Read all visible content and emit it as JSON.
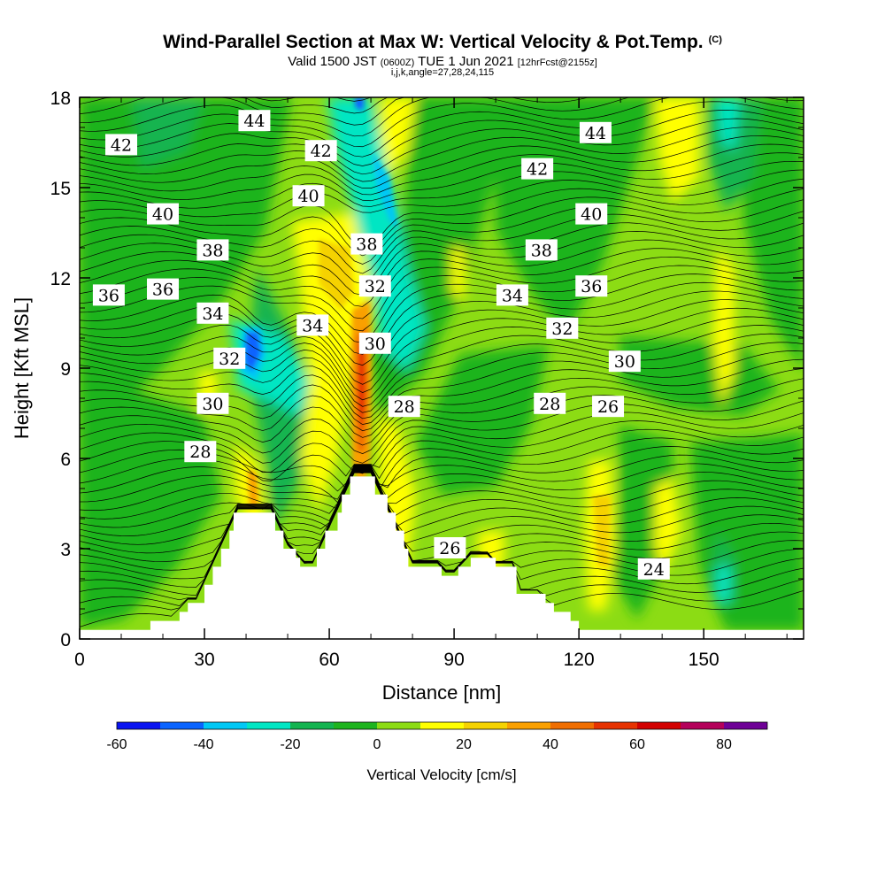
{
  "chart_data": {
    "type": "heatmap",
    "title": "Wind-Parallel Section at Max W: Vertical Velocity & Pot.Temp.",
    "title_mark": "(C)",
    "subtitle_valid": "Valid 1500 JST",
    "subtitle_utc": "(0600Z)",
    "subtitle_date": "TUE 1 Jun 2021",
    "subtitle_fcst": "[12hrFcst@2155z]",
    "subtitle2": "i,j,k,angle=27,28,24,115",
    "xlabel": "Distance [nm]",
    "ylabel": "Height [Kft MSL]",
    "xlim": [
      0,
      174
    ],
    "ylim": [
      0,
      18
    ],
    "xticks": [
      0,
      30,
      60,
      90,
      120,
      150
    ],
    "yticks": [
      0,
      3,
      6,
      9,
      12,
      15,
      18
    ],
    "colorbar": {
      "label": "Vertical Velocity [cm/s]",
      "ticks": [
        -60,
        -40,
        -20,
        0,
        20,
        40,
        60,
        80
      ],
      "bins": [
        -60,
        -50,
        -40,
        -30,
        -20,
        -10,
        0,
        10,
        20,
        30,
        40,
        50,
        60,
        70,
        80,
        90
      ],
      "colors": [
        "#0a14f0",
        "#0a64ff",
        "#00c8f5",
        "#00e6c3",
        "#14b450",
        "#1eb41e",
        "#8cdc14",
        "#ffff00",
        "#f5d200",
        "#faa000",
        "#f06e00",
        "#e63200",
        "#d20000",
        "#b4005a",
        "#6e0096"
      ]
    },
    "terrain_profile": [
      [
        0,
        0.3
      ],
      [
        15,
        0.3
      ],
      [
        17,
        0.6
      ],
      [
        22,
        0.6
      ],
      [
        24,
        0.9
      ],
      [
        26,
        1.2
      ],
      [
        29,
        1.2
      ],
      [
        30,
        1.8
      ],
      [
        32,
        2.4
      ],
      [
        34,
        3.0
      ],
      [
        36,
        3.6
      ],
      [
        37,
        4.2
      ],
      [
        46,
        4.2
      ],
      [
        47,
        3.6
      ],
      [
        49,
        3.0
      ],
      [
        52,
        2.7
      ],
      [
        53,
        2.4
      ],
      [
        56,
        2.4
      ],
      [
        57,
        3.0
      ],
      [
        59,
        3.6
      ],
      [
        62,
        4.2
      ],
      [
        63,
        4.8
      ],
      [
        65,
        5.4
      ],
      [
        70,
        5.4
      ],
      [
        71,
        4.8
      ],
      [
        74,
        4.2
      ],
      [
        76,
        3.6
      ],
      [
        78,
        3.0
      ],
      [
        79,
        2.4
      ],
      [
        86,
        2.4
      ],
      [
        87,
        2.1
      ],
      [
        90,
        2.1
      ],
      [
        91,
        2.4
      ],
      [
        94,
        2.7
      ],
      [
        98,
        2.7
      ],
      [
        100,
        2.4
      ],
      [
        104,
        2.4
      ],
      [
        105,
        1.5
      ],
      [
        112,
        1.2
      ],
      [
        114,
        0.9
      ],
      [
        118,
        0.6
      ],
      [
        120,
        0.3
      ],
      [
        174,
        0.3
      ]
    ],
    "isentrope_labels": [
      {
        "text": "44",
        "x": 42,
        "y": 17.2
      },
      {
        "text": "42",
        "x": 10,
        "y": 16.4
      },
      {
        "text": "42",
        "x": 58,
        "y": 16.2
      },
      {
        "text": "44",
        "x": 124,
        "y": 16.8
      },
      {
        "text": "42",
        "x": 110,
        "y": 15.6
      },
      {
        "text": "40",
        "x": 20,
        "y": 14.1
      },
      {
        "text": "40",
        "x": 55,
        "y": 14.7
      },
      {
        "text": "40",
        "x": 123,
        "y": 14.1
      },
      {
        "text": "38",
        "x": 69,
        "y": 13.1
      },
      {
        "text": "38",
        "x": 32,
        "y": 12.9
      },
      {
        "text": "38",
        "x": 111,
        "y": 12.9
      },
      {
        "text": "36",
        "x": 7,
        "y": 11.4
      },
      {
        "text": "36",
        "x": 20,
        "y": 11.6
      },
      {
        "text": "36",
        "x": 123,
        "y": 11.7
      },
      {
        "text": "32",
        "x": 71,
        "y": 11.7
      },
      {
        "text": "34",
        "x": 104,
        "y": 11.4
      },
      {
        "text": "34",
        "x": 32,
        "y": 10.8
      },
      {
        "text": "34",
        "x": 56,
        "y": 10.4
      },
      {
        "text": "32",
        "x": 116,
        "y": 10.3
      },
      {
        "text": "30",
        "x": 71,
        "y": 9.8
      },
      {
        "text": "32",
        "x": 36,
        "y": 9.3
      },
      {
        "text": "30",
        "x": 131,
        "y": 9.2
      },
      {
        "text": "30",
        "x": 32,
        "y": 7.8
      },
      {
        "text": "28",
        "x": 78,
        "y": 7.7
      },
      {
        "text": "28",
        "x": 113,
        "y": 7.8
      },
      {
        "text": "26",
        "x": 127,
        "y": 7.7
      },
      {
        "text": "28",
        "x": 29,
        "y": 6.2
      },
      {
        "text": "26",
        "x": 89,
        "y": 3.0
      },
      {
        "text": "24",
        "x": 138,
        "y": 2.3
      }
    ],
    "velocity_cells": [
      {
        "x": 68,
        "y": 7.5,
        "w": 1.6,
        "h": 3.5,
        "v": 55
      },
      {
        "x": 42,
        "y": 9.6,
        "w": 3,
        "h": 1.2,
        "v": -55
      },
      {
        "x": 76,
        "y": 12.2,
        "w": 4,
        "h": 2.5,
        "v": -25
      },
      {
        "x": 66,
        "y": 11.5,
        "w": 5,
        "h": 4,
        "v": 15
      },
      {
        "x": 125,
        "y": 3.2,
        "w": 4,
        "h": 2.5,
        "v": 18
      }
    ]
  }
}
